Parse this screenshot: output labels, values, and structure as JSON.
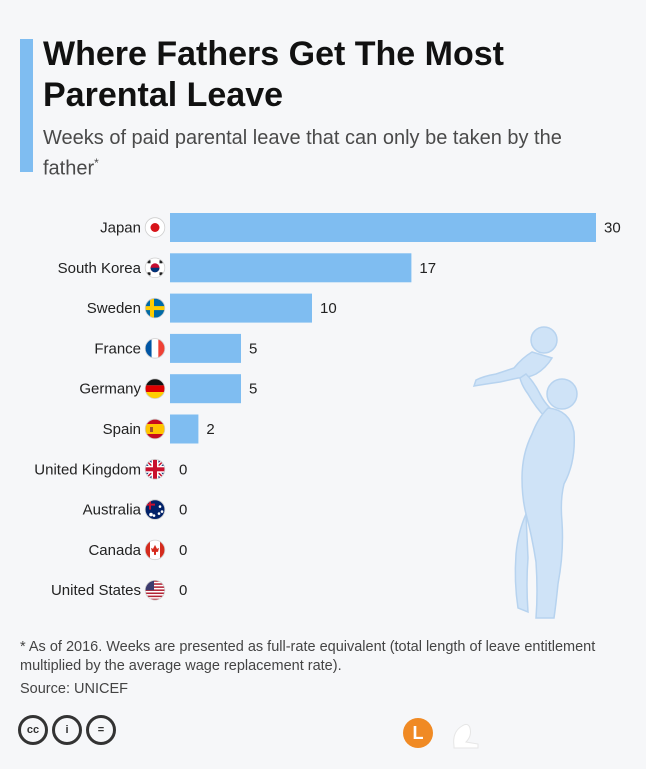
{
  "header": {
    "title": "Where Fathers Get The Most Parental Leave",
    "subtitle": "Weeks of paid parental leave that can only be taken by the father",
    "subtitle_marker": "*"
  },
  "footer": {
    "footnote": "* As of 2016. Weeks are presented as full-rate equivalent (total length of leave entitlement multiplied by the average wage replacement rate).",
    "source": "Source: UNICEF",
    "license_icons": [
      "cc-icon",
      "attribution-icon",
      "no-derivatives-icon"
    ],
    "license_icon_labels": [
      "cc",
      "i",
      "="
    ],
    "brand_letter": "L"
  },
  "colors": {
    "bar": "#7fbdf1",
    "accent": "#7fbdf1",
    "silhouette": "#cfe3f7"
  },
  "chart_data": {
    "type": "bar",
    "orientation": "horizontal",
    "title": "Where Fathers Get The Most Parental Leave",
    "subtitle": "Weeks of paid parental leave that can only be taken by the father*",
    "categories": [
      "Japan",
      "South Korea",
      "Sweden",
      "France",
      "Germany",
      "Spain",
      "United Kingdom",
      "Australia",
      "Canada",
      "United States"
    ],
    "values": [
      30,
      17,
      10,
      5,
      5,
      2,
      0,
      0,
      0,
      0
    ],
    "flags": [
      "japan-flag-icon",
      "south-korea-flag-icon",
      "sweden-flag-icon",
      "france-flag-icon",
      "germany-flag-icon",
      "spain-flag-icon",
      "united-kingdom-flag-icon",
      "australia-flag-icon",
      "canada-flag-icon",
      "united-states-flag-icon"
    ],
    "xlim": [
      0,
      30
    ],
    "grid": false,
    "data_labels": true
  }
}
